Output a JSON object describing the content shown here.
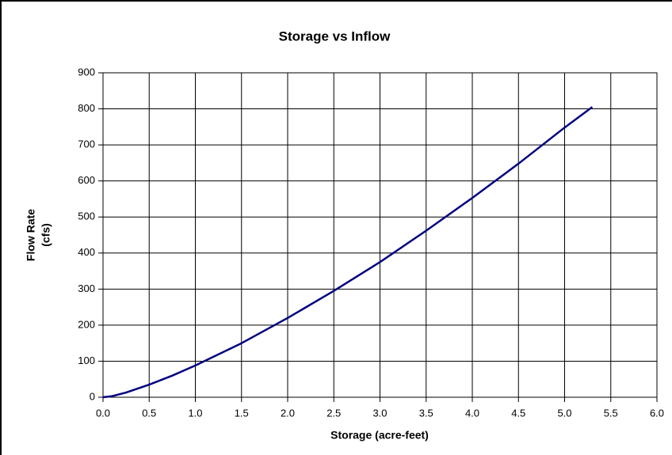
{
  "chart_data": {
    "type": "line",
    "title": "Storage vs Inflow",
    "xlabel": "Storage (acre-feet)",
    "ylabel": [
      "Flow Rate",
      "(cfs)"
    ],
    "grid": true,
    "series": [
      {
        "name": "Storage vs Inflow",
        "color": "#000080",
        "x": [
          0,
          0.1,
          0.25,
          0.5,
          0.75,
          1.0,
          1.5,
          2.0,
          2.5,
          3.0,
          3.5,
          4.0,
          4.5,
          5.0,
          5.3
        ],
        "values": [
          0,
          3,
          13,
          35,
          60,
          88,
          150,
          220,
          295,
          375,
          462,
          553,
          648,
          748,
          805
        ]
      }
    ],
    "xlim": [
      0,
      6
    ],
    "xticks": [
      {
        "value": 0,
        "label": "0.0"
      },
      {
        "value": 0.5,
        "label": "0.5"
      },
      {
        "value": 1,
        "label": "1.0"
      },
      {
        "value": 1.5,
        "label": "1.5"
      },
      {
        "value": 2,
        "label": "2.0"
      },
      {
        "value": 2.5,
        "label": "2.5"
      },
      {
        "value": 3,
        "label": "3.0"
      },
      {
        "value": 3.5,
        "label": "3.5"
      },
      {
        "value": 4,
        "label": "4.0"
      },
      {
        "value": 4.5,
        "label": "4.5"
      },
      {
        "value": 5,
        "label": "5.0"
      },
      {
        "value": 5.5,
        "label": "5.5"
      },
      {
        "value": 6,
        "label": "6.0"
      }
    ],
    "ylim": [
      0,
      900
    ],
    "yticks": [
      0,
      100,
      200,
      300,
      400,
      500,
      600,
      700,
      800,
      900
    ]
  }
}
